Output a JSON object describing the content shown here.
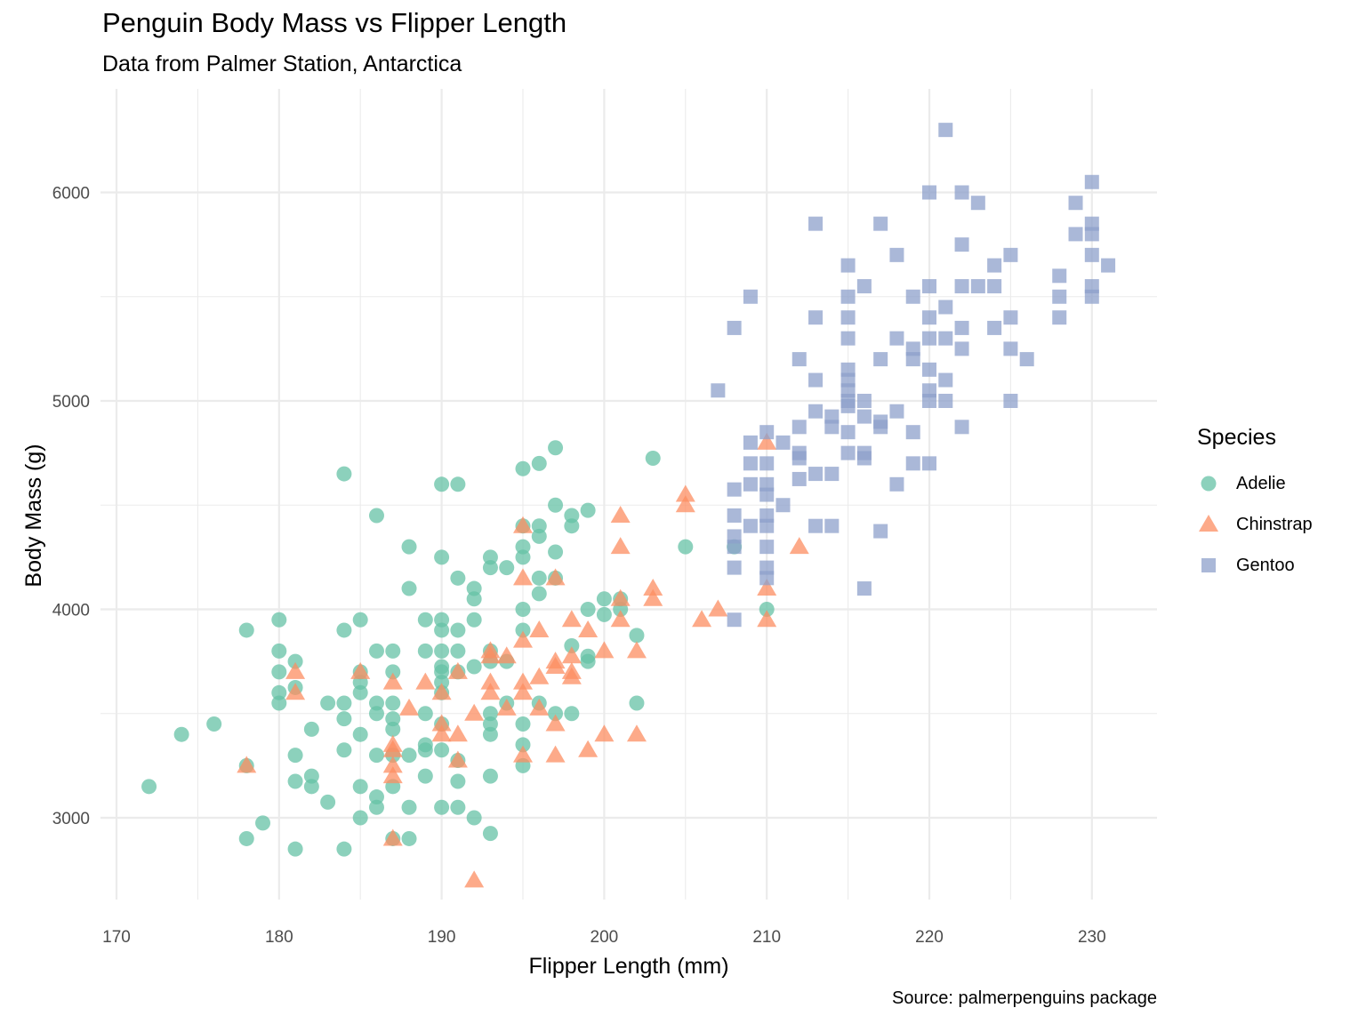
{
  "chart_data": {
    "type": "scatter",
    "title": "Penguin Body Mass vs Flipper Length",
    "subtitle": "Data from Palmer Station, Antarctica",
    "caption": "Source: palmerpenguins package",
    "xlabel": "Flipper Length (mm)",
    "ylabel": "Body Mass (g)",
    "xlim": [
      169.5,
      234
    ],
    "ylim": [
      2550,
      6450
    ],
    "x_ticks": [
      170,
      180,
      190,
      200,
      210,
      220,
      230
    ],
    "y_ticks": [
      3000,
      4000,
      5000,
      6000
    ],
    "grid": true,
    "legend": {
      "title": "Species",
      "placement": "right"
    },
    "series": [
      {
        "name": "Adelie",
        "color": "#66c2a5",
        "shape": "circle",
        "points": [
          [
            172,
            3150
          ],
          [
            174,
            3400
          ],
          [
            176,
            3450
          ],
          [
            178,
            3250
          ],
          [
            178,
            3900
          ],
          [
            178,
            2900
          ],
          [
            179,
            2975
          ],
          [
            180,
            3950
          ],
          [
            180,
            3800
          ],
          [
            180,
            3700
          ],
          [
            180,
            3600
          ],
          [
            180,
            3550
          ],
          [
            181,
            3750
          ],
          [
            181,
            3625
          ],
          [
            181,
            3300
          ],
          [
            181,
            3175
          ],
          [
            181,
            2850
          ],
          [
            182,
            3425
          ],
          [
            182,
            3200
          ],
          [
            182,
            3150
          ],
          [
            183,
            3550
          ],
          [
            183,
            3075
          ],
          [
            184,
            4650
          ],
          [
            184,
            3900
          ],
          [
            184,
            3550
          ],
          [
            184,
            3475
          ],
          [
            184,
            3325
          ],
          [
            184,
            2850
          ],
          [
            185,
            3950
          ],
          [
            185,
            3700
          ],
          [
            185,
            3650
          ],
          [
            185,
            3600
          ],
          [
            185,
            3400
          ],
          [
            185,
            3150
          ],
          [
            185,
            3000
          ],
          [
            186,
            4450
          ],
          [
            186,
            3800
          ],
          [
            186,
            3550
          ],
          [
            186,
            3500
          ],
          [
            186,
            3300
          ],
          [
            186,
            3100
          ],
          [
            186,
            3050
          ],
          [
            187,
            3800
          ],
          [
            187,
            3700
          ],
          [
            187,
            3550
          ],
          [
            187,
            3475
          ],
          [
            187,
            3425
          ],
          [
            187,
            3300
          ],
          [
            187,
            3150
          ],
          [
            187,
            2900
          ],
          [
            188,
            4300
          ],
          [
            188,
            4100
          ],
          [
            188,
            3300
          ],
          [
            188,
            3050
          ],
          [
            188,
            2900
          ],
          [
            189,
            3950
          ],
          [
            189,
            3800
          ],
          [
            189,
            3500
          ],
          [
            189,
            3350
          ],
          [
            189,
            3325
          ],
          [
            189,
            3200
          ],
          [
            190,
            4600
          ],
          [
            190,
            4250
          ],
          [
            190,
            3950
          ],
          [
            190,
            3900
          ],
          [
            190,
            3800
          ],
          [
            190,
            3725
          ],
          [
            190,
            3700
          ],
          [
            190,
            3650
          ],
          [
            190,
            3600
          ],
          [
            190,
            3450
          ],
          [
            190,
            3325
          ],
          [
            190,
            3050
          ],
          [
            191,
            4600
          ],
          [
            191,
            4150
          ],
          [
            191,
            3900
          ],
          [
            191,
            3800
          ],
          [
            191,
            3700
          ],
          [
            191,
            3275
          ],
          [
            191,
            3175
          ],
          [
            191,
            3050
          ],
          [
            192,
            4100
          ],
          [
            192,
            4050
          ],
          [
            192,
            3950
          ],
          [
            192,
            3725
          ],
          [
            192,
            3000
          ],
          [
            193,
            4250
          ],
          [
            193,
            4200
          ],
          [
            193,
            3800
          ],
          [
            193,
            3750
          ],
          [
            193,
            3500
          ],
          [
            193,
            3450
          ],
          [
            193,
            3400
          ],
          [
            193,
            3200
          ],
          [
            193,
            2925
          ],
          [
            194,
            4200
          ],
          [
            194,
            3750
          ],
          [
            194,
            3550
          ],
          [
            195,
            4675
          ],
          [
            195,
            4400
          ],
          [
            195,
            4300
          ],
          [
            195,
            4250
          ],
          [
            195,
            4000
          ],
          [
            195,
            3900
          ],
          [
            195,
            3450
          ],
          [
            195,
            3350
          ],
          [
            195,
            3250
          ],
          [
            196,
            4700
          ],
          [
            196,
            4400
          ],
          [
            196,
            4350
          ],
          [
            196,
            4150
          ],
          [
            196,
            4075
          ],
          [
            196,
            3550
          ],
          [
            197,
            4775
          ],
          [
            197,
            4500
          ],
          [
            197,
            4275
          ],
          [
            197,
            4150
          ],
          [
            197,
            3500
          ],
          [
            198,
            4450
          ],
          [
            198,
            4400
          ],
          [
            198,
            3825
          ],
          [
            198,
            3500
          ],
          [
            199,
            4475
          ],
          [
            199,
            4000
          ],
          [
            199,
            3775
          ],
          [
            199,
            3750
          ],
          [
            200,
            4050
          ],
          [
            200,
            3975
          ],
          [
            201,
            4050
          ],
          [
            201,
            4000
          ],
          [
            202,
            3875
          ],
          [
            202,
            3550
          ],
          [
            203,
            4725
          ],
          [
            205,
            4300
          ],
          [
            208,
            4300
          ],
          [
            210,
            4000
          ]
        ]
      },
      {
        "name": "Chinstrap",
        "color": "#fc8d62",
        "shape": "triangle",
        "points": [
          [
            178,
            3250
          ],
          [
            181,
            3700
          ],
          [
            181,
            3600
          ],
          [
            185,
            3700
          ],
          [
            187,
            3650
          ],
          [
            187,
            3350
          ],
          [
            187,
            3325
          ],
          [
            187,
            3250
          ],
          [
            187,
            3200
          ],
          [
            187,
            2900
          ],
          [
            188,
            3525
          ],
          [
            189,
            3650
          ],
          [
            190,
            3600
          ],
          [
            190,
            3450
          ],
          [
            190,
            3400
          ],
          [
            191,
            3700
          ],
          [
            191,
            3400
          ],
          [
            191,
            3275
          ],
          [
            192,
            3500
          ],
          [
            192,
            2700
          ],
          [
            193,
            3800
          ],
          [
            193,
            3775
          ],
          [
            193,
            3650
          ],
          [
            193,
            3600
          ],
          [
            194,
            3775
          ],
          [
            194,
            3525
          ],
          [
            195,
            4400
          ],
          [
            195,
            4150
          ],
          [
            195,
            3850
          ],
          [
            195,
            3650
          ],
          [
            195,
            3600
          ],
          [
            195,
            3300
          ],
          [
            196,
            3900
          ],
          [
            196,
            3675
          ],
          [
            196,
            3525
          ],
          [
            197,
            4150
          ],
          [
            197,
            3750
          ],
          [
            197,
            3725
          ],
          [
            197,
            3450
          ],
          [
            197,
            3300
          ],
          [
            198,
            3950
          ],
          [
            198,
            3775
          ],
          [
            198,
            3700
          ],
          [
            198,
            3675
          ],
          [
            199,
            3900
          ],
          [
            199,
            3325
          ],
          [
            200,
            3800
          ],
          [
            200,
            3400
          ],
          [
            201,
            4450
          ],
          [
            201,
            4300
          ],
          [
            201,
            4050
          ],
          [
            201,
            3950
          ],
          [
            202,
            3800
          ],
          [
            202,
            3400
          ],
          [
            203,
            4100
          ],
          [
            203,
            4050
          ],
          [
            205,
            4550
          ],
          [
            205,
            4500
          ],
          [
            206,
            3950
          ],
          [
            207,
            4000
          ],
          [
            210,
            4800
          ],
          [
            210,
            4100
          ],
          [
            210,
            3950
          ],
          [
            212,
            4300
          ]
        ]
      },
      {
        "name": "Gentoo",
        "color": "#8da0cb",
        "shape": "square",
        "points": [
          [
            207,
            5050
          ],
          [
            208,
            5350
          ],
          [
            208,
            4575
          ],
          [
            208,
            4450
          ],
          [
            208,
            4350
          ],
          [
            208,
            4300
          ],
          [
            208,
            4200
          ],
          [
            208,
            3950
          ],
          [
            209,
            5500
          ],
          [
            209,
            4800
          ],
          [
            209,
            4700
          ],
          [
            209,
            4600
          ],
          [
            209,
            4400
          ],
          [
            210,
            4850
          ],
          [
            210,
            4700
          ],
          [
            210,
            4600
          ],
          [
            210,
            4550
          ],
          [
            210,
            4450
          ],
          [
            210,
            4400
          ],
          [
            210,
            4300
          ],
          [
            210,
            4200
          ],
          [
            210,
            4150
          ],
          [
            211,
            4800
          ],
          [
            211,
            4500
          ],
          [
            212,
            5200
          ],
          [
            212,
            4875
          ],
          [
            212,
            4750
          ],
          [
            212,
            4725
          ],
          [
            212,
            4625
          ],
          [
            213,
            5850
          ],
          [
            213,
            5400
          ],
          [
            213,
            5100
          ],
          [
            213,
            4950
          ],
          [
            213,
            4650
          ],
          [
            213,
            4400
          ],
          [
            214,
            4925
          ],
          [
            214,
            4875
          ],
          [
            214,
            4650
          ],
          [
            214,
            4400
          ],
          [
            215,
            5650
          ],
          [
            215,
            5500
          ],
          [
            215,
            5400
          ],
          [
            215,
            5300
          ],
          [
            215,
            5150
          ],
          [
            215,
            5100
          ],
          [
            215,
            5050
          ],
          [
            215,
            5000
          ],
          [
            215,
            4975
          ],
          [
            215,
            4850
          ],
          [
            215,
            4750
          ],
          [
            216,
            5550
          ],
          [
            216,
            5000
          ],
          [
            216,
            4925
          ],
          [
            216,
            4750
          ],
          [
            216,
            4725
          ],
          [
            216,
            4100
          ],
          [
            217,
            5850
          ],
          [
            217,
            5200
          ],
          [
            217,
            4900
          ],
          [
            217,
            4875
          ],
          [
            217,
            4375
          ],
          [
            218,
            5700
          ],
          [
            218,
            5300
          ],
          [
            218,
            4950
          ],
          [
            218,
            4600
          ],
          [
            219,
            5500
          ],
          [
            219,
            5250
          ],
          [
            219,
            5200
          ],
          [
            219,
            4850
          ],
          [
            219,
            4700
          ],
          [
            220,
            6000
          ],
          [
            220,
            5550
          ],
          [
            220,
            5400
          ],
          [
            220,
            5300
          ],
          [
            220,
            5150
          ],
          [
            220,
            5050
          ],
          [
            220,
            5000
          ],
          [
            220,
            4700
          ],
          [
            221,
            6300
          ],
          [
            221,
            5450
          ],
          [
            221,
            5300
          ],
          [
            221,
            5100
          ],
          [
            221,
            5000
          ],
          [
            222,
            6000
          ],
          [
            222,
            5750
          ],
          [
            222,
            5550
          ],
          [
            222,
            5350
          ],
          [
            222,
            5250
          ],
          [
            222,
            4875
          ],
          [
            223,
            5950
          ],
          [
            223,
            5550
          ],
          [
            224,
            5650
          ],
          [
            224,
            5550
          ],
          [
            224,
            5350
          ],
          [
            225,
            5700
          ],
          [
            225,
            5400
          ],
          [
            225,
            5250
          ],
          [
            225,
            5000
          ],
          [
            226,
            5200
          ],
          [
            228,
            5600
          ],
          [
            228,
            5500
          ],
          [
            228,
            5400
          ],
          [
            229,
            5950
          ],
          [
            229,
            5800
          ],
          [
            230,
            6050
          ],
          [
            230,
            5850
          ],
          [
            230,
            5800
          ],
          [
            230,
            5700
          ],
          [
            230,
            5550
          ],
          [
            230,
            5500
          ],
          [
            231,
            5650
          ]
        ]
      }
    ]
  }
}
